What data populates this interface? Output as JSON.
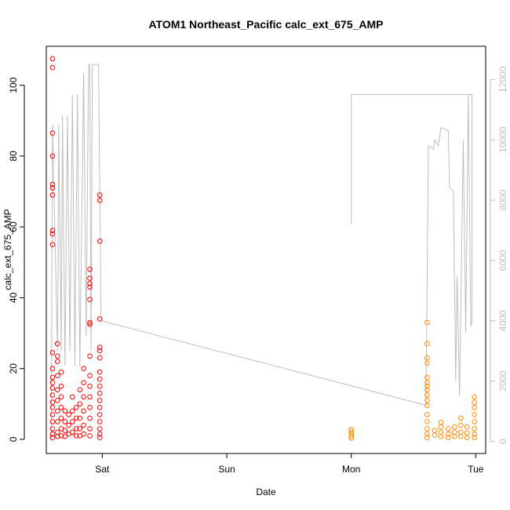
{
  "chart_data": {
    "type": "scatter",
    "title": "ATOM1 Northeast_Pacific calc_ext_675_AMP",
    "xlabel": "Date",
    "ylabel": "calc_ext_675_AMP",
    "x_ticks": [
      "Sat",
      "Sun",
      "Mon",
      "Tue"
    ],
    "xlim_days": [
      -0.45,
      3.08
    ],
    "ylim": [
      -4,
      111
    ],
    "y_ticks": [
      0,
      20,
      40,
      60,
      80,
      100
    ],
    "y2_ticks": [
      0,
      2000,
      4000,
      6000,
      8000,
      10000,
      12000
    ],
    "y2lim": [
      -400,
      13100
    ],
    "colors": {
      "series_a": "#ff0000",
      "series_b": "#ff8c00",
      "depth_line": "#bebebe",
      "axis": "#000000",
      "axis_right": "#bebebe"
    },
    "series": [
      {
        "color": "#ff0000",
        "points": [
          [
            -0.4,
            107.5
          ],
          [
            -0.4,
            105.0
          ],
          [
            -0.4,
            86.5
          ],
          [
            -0.4,
            80.0
          ],
          [
            -0.4,
            72.0
          ],
          [
            -0.4,
            71.0
          ],
          [
            -0.4,
            69.0
          ],
          [
            -0.4,
            59.0
          ],
          [
            -0.4,
            58.0
          ],
          [
            -0.4,
            55.0
          ],
          [
            -0.4,
            24.5
          ],
          [
            -0.4,
            20.0
          ],
          [
            -0.4,
            17.5
          ],
          [
            -0.4,
            16.0
          ],
          [
            -0.4,
            14.5
          ],
          [
            -0.4,
            12.5
          ],
          [
            -0.4,
            10.5
          ],
          [
            -0.4,
            9.0
          ],
          [
            -0.4,
            7.0
          ],
          [
            -0.4,
            5.0
          ],
          [
            -0.4,
            3.0
          ],
          [
            -0.4,
            1.5
          ],
          [
            -0.4,
            0.5
          ],
          [
            -0.36,
            27.0
          ],
          [
            -0.36,
            23.5
          ],
          [
            -0.36,
            22.0
          ],
          [
            -0.36,
            18.0
          ],
          [
            -0.36,
            14.0
          ],
          [
            -0.36,
            11.0
          ],
          [
            -0.36,
            8.0
          ],
          [
            -0.36,
            5.0
          ],
          [
            -0.36,
            2.0
          ],
          [
            -0.36,
            0.8
          ],
          [
            -0.33,
            19.0
          ],
          [
            -0.33,
            15.0
          ],
          [
            -0.33,
            12.0
          ],
          [
            -0.33,
            9.0
          ],
          [
            -0.33,
            6.0
          ],
          [
            -0.33,
            3.0
          ],
          [
            -0.33,
            1.0
          ],
          [
            -0.3,
            8.0
          ],
          [
            -0.3,
            5.0
          ],
          [
            -0.3,
            2.5
          ],
          [
            -0.3,
            0.8
          ],
          [
            -0.27,
            7.0
          ],
          [
            -0.27,
            4.0
          ],
          [
            -0.27,
            1.5
          ],
          [
            -0.24,
            12.0
          ],
          [
            -0.24,
            8.0
          ],
          [
            -0.24,
            5.0
          ],
          [
            -0.24,
            2.0
          ],
          [
            -0.21,
            9.0
          ],
          [
            -0.21,
            6.0
          ],
          [
            -0.21,
            3.0
          ],
          [
            -0.21,
            1.0
          ],
          [
            -0.18,
            14.0
          ],
          [
            -0.18,
            10.0
          ],
          [
            -0.18,
            6.0
          ],
          [
            -0.18,
            3.0
          ],
          [
            -0.18,
            1.0
          ],
          [
            -0.15,
            20.0
          ],
          [
            -0.15,
            16.0
          ],
          [
            -0.15,
            12.0
          ],
          [
            -0.15,
            8.0
          ],
          [
            -0.15,
            4.0
          ],
          [
            -0.15,
            1.5
          ],
          [
            -0.1,
            48.0
          ],
          [
            -0.1,
            45.5
          ],
          [
            -0.1,
            44.0
          ],
          [
            -0.1,
            43.0
          ],
          [
            -0.1,
            39.5
          ],
          [
            -0.1,
            33.0
          ],
          [
            -0.1,
            32.5
          ],
          [
            -0.1,
            23.5
          ],
          [
            -0.1,
            18.0
          ],
          [
            -0.1,
            15.0
          ],
          [
            -0.1,
            12.0
          ],
          [
            -0.1,
            9.0
          ],
          [
            -0.1,
            6.0
          ],
          [
            -0.1,
            3.0
          ],
          [
            -0.1,
            1.0
          ],
          [
            -0.02,
            69.0
          ],
          [
            -0.02,
            67.5
          ],
          [
            -0.02,
            56.0
          ],
          [
            -0.02,
            34.0
          ],
          [
            -0.02,
            26.0
          ],
          [
            -0.02,
            25.0
          ],
          [
            -0.02,
            23.0
          ],
          [
            -0.02,
            19.0
          ],
          [
            -0.02,
            17.0
          ],
          [
            -0.02,
            15.0
          ],
          [
            -0.02,
            13.0
          ],
          [
            -0.02,
            11.0
          ],
          [
            -0.02,
            9.0
          ],
          [
            -0.02,
            7.0
          ],
          [
            -0.02,
            5.0
          ],
          [
            -0.02,
            3.0
          ],
          [
            -0.02,
            1.5
          ],
          [
            -0.02,
            0.5
          ]
        ]
      },
      {
        "color": "#ff8c00",
        "points": [
          [
            2.0,
            2.8
          ],
          [
            2.0,
            2.2
          ],
          [
            2.0,
            1.5
          ],
          [
            2.0,
            0.8
          ],
          [
            2.0,
            0.3
          ],
          [
            2.61,
            33.0
          ],
          [
            2.61,
            27.0
          ],
          [
            2.61,
            23.0
          ],
          [
            2.61,
            21.5
          ],
          [
            2.61,
            17.5
          ],
          [
            2.61,
            16.0
          ],
          [
            2.61,
            15.0
          ],
          [
            2.61,
            14.0
          ],
          [
            2.61,
            12.5
          ],
          [
            2.61,
            11.0
          ],
          [
            2.61,
            9.5
          ],
          [
            2.61,
            7.0
          ],
          [
            2.61,
            5.0
          ],
          [
            2.61,
            3.0
          ],
          [
            2.61,
            1.5
          ],
          [
            2.61,
            0.5
          ],
          [
            2.67,
            2.5
          ],
          [
            2.67,
            1.2
          ],
          [
            2.72,
            4.8
          ],
          [
            2.72,
            3.5
          ],
          [
            2.72,
            2.0
          ],
          [
            2.72,
            0.8
          ],
          [
            2.78,
            3.0
          ],
          [
            2.78,
            1.5
          ],
          [
            2.78,
            0.5
          ],
          [
            2.83,
            3.5
          ],
          [
            2.83,
            2.0
          ],
          [
            2.83,
            0.8
          ],
          [
            2.88,
            6.0
          ],
          [
            2.88,
            4.0
          ],
          [
            2.88,
            2.0
          ],
          [
            2.88,
            0.8
          ],
          [
            2.93,
            3.5
          ],
          [
            2.93,
            1.8
          ],
          [
            2.93,
            0.5
          ],
          [
            2.99,
            12.0
          ],
          [
            2.99,
            10.5
          ],
          [
            2.99,
            9.0
          ],
          [
            2.99,
            7.0
          ],
          [
            2.99,
            5.0
          ],
          [
            2.99,
            3.0
          ],
          [
            2.99,
            1.5
          ],
          [
            2.99,
            0.5
          ]
        ]
      }
    ],
    "depth_line": [
      [
        -0.41,
        0
      ],
      [
        -0.4,
        10500
      ],
      [
        -0.36,
        3000
      ],
      [
        -0.35,
        10500
      ],
      [
        -0.33,
        3000
      ],
      [
        -0.32,
        10800
      ],
      [
        -0.3,
        2500
      ],
      [
        -0.28,
        10800
      ],
      [
        -0.26,
        3000
      ],
      [
        -0.24,
        11500
      ],
      [
        -0.22,
        2500
      ],
      [
        -0.2,
        11500
      ],
      [
        -0.18,
        2500
      ],
      [
        -0.15,
        12200
      ],
      [
        -0.13,
        3500
      ],
      [
        -0.11,
        12500
      ],
      [
        -0.1,
        12500
      ],
      [
        -0.09,
        3000
      ],
      [
        -0.08,
        12500
      ],
      [
        -0.03,
        12500
      ],
      [
        -0.01,
        4000
      ],
      [
        2.6,
        1200
      ],
      [
        2.62,
        9800
      ],
      [
        2.66,
        9700
      ],
      [
        2.67,
        10000
      ],
      [
        2.7,
        9800
      ],
      [
        2.72,
        10400
      ],
      [
        2.78,
        10300
      ],
      [
        2.79,
        8400
      ],
      [
        2.82,
        8300
      ],
      [
        2.84,
        2000
      ],
      [
        2.85,
        5500
      ],
      [
        2.87,
        1500
      ],
      [
        2.9,
        10000
      ],
      [
        2.92,
        3600
      ],
      [
        2.94,
        11500
      ],
      [
        2.96,
        3800
      ],
      [
        2.97,
        4000
      ],
      [
        2.97,
        11500
      ],
      [
        2.0,
        11500
      ],
      [
        2.0,
        7200
      ]
    ]
  }
}
